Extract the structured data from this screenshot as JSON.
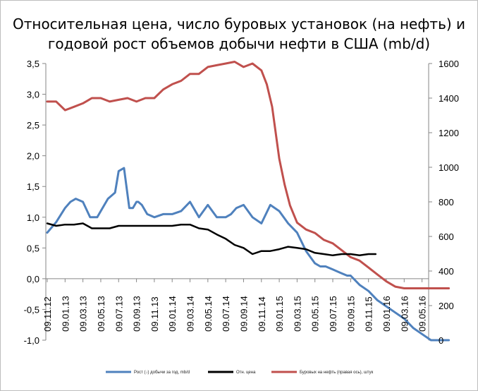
{
  "chart_data": {
    "type": "line",
    "title": [
      "Относительная цена, число буровых установок (на нефть) и",
      "годовой рост объемов добычи нефти в США (mb/d)"
    ],
    "y_left": {
      "ylim": [
        -1.0,
        3.5
      ],
      "ticks": [
        "-1,0",
        "-0,5",
        "0,0",
        "0,5",
        "1,0",
        "1,5",
        "2,0",
        "2,5",
        "3,0",
        "3,5"
      ]
    },
    "y_right": {
      "ylim": [
        0,
        1600
      ],
      "ticks": [
        "0",
        "200",
        "400",
        "600",
        "800",
        "1000",
        "1200",
        "1400",
        "1600"
      ]
    },
    "x_ticks": [
      "09.11.12",
      "09.01.13",
      "09.03.13",
      "09.05.13",
      "09.07.13",
      "09.09.13",
      "09.11.13",
      "09.01.14",
      "09.03.14",
      "09.05.14",
      "09.07.14",
      "09.09.14",
      "09.11.14",
      "09.01.15",
      "09.03.15",
      "09.05.15",
      "09.07.15",
      "09.09.15",
      "09.11.15",
      "09.01.16",
      "09.03.16",
      "09.05.16"
    ],
    "series": [
      {
        "name": "Рост (↓) добычи за год, mb/d",
        "axis": "left",
        "color": "#4f81bd",
        "x": [
          0,
          0.5,
          1,
          1.3,
          1.6,
          2,
          2.4,
          2.8,
          3,
          3.4,
          3.8,
          4,
          4.3,
          4.6,
          4.8,
          5,
          5.1,
          5.3,
          5.6,
          6,
          6.5,
          7,
          7.5,
          8,
          8.5,
          9,
          9.5,
          10,
          10.3,
          10.6,
          11,
          11.5,
          12,
          12.5,
          13,
          13.5,
          14,
          14.5,
          15,
          15.3,
          15.6,
          16,
          16.4,
          16.8,
          17,
          17.5,
          18,
          18.5,
          19,
          19.5,
          20,
          20.5,
          21,
          21.5,
          22,
          22.5
        ],
        "values": [
          0.75,
          0.92,
          1.15,
          1.25,
          1.3,
          1.25,
          1.0,
          1.0,
          1.1,
          1.3,
          1.4,
          1.75,
          1.8,
          1.15,
          1.15,
          1.25,
          1.25,
          1.2,
          1.05,
          1.0,
          1.05,
          1.05,
          1.1,
          1.25,
          1.0,
          1.2,
          1.0,
          1.0,
          1.05,
          1.15,
          1.2,
          1.0,
          0.9,
          1.2,
          1.1,
          0.9,
          0.75,
          0.45,
          0.25,
          0.2,
          0.2,
          0.15,
          0.1,
          0.05,
          0.05,
          -0.1,
          -0.2,
          -0.35,
          -0.45,
          -0.55,
          -0.65,
          -0.8,
          -0.9,
          -1.0,
          -1.0,
          -1.0
        ]
      },
      {
        "name": "Отн. цена",
        "axis": "left",
        "color": "#000000",
        "x": [
          0,
          0.5,
          1,
          1.5,
          2,
          2.5,
          3,
          3.5,
          4,
          4.5,
          5,
          5.5,
          6,
          6.5,
          7,
          7.5,
          8,
          8.5,
          9,
          9.5,
          10,
          10.5,
          11,
          11.5,
          12,
          12.5,
          13,
          13.5,
          14,
          14.5,
          15,
          15.5,
          16,
          16.5,
          17,
          17.5,
          18,
          18.4
        ],
        "values": [
          0.9,
          0.86,
          0.88,
          0.88,
          0.9,
          0.82,
          0.82,
          0.82,
          0.86,
          0.86,
          0.86,
          0.86,
          0.86,
          0.86,
          0.86,
          0.88,
          0.88,
          0.82,
          0.8,
          0.72,
          0.65,
          0.55,
          0.5,
          0.4,
          0.45,
          0.45,
          0.48,
          0.52,
          0.5,
          0.48,
          0.42,
          0.4,
          0.38,
          0.4,
          0.4,
          0.38,
          0.4,
          0.4
        ]
      },
      {
        "name": "Буровых на нефть (правая ось), штук",
        "axis": "right",
        "color": "#c0504d",
        "x": [
          0,
          0.5,
          1,
          1.5,
          2,
          2.5,
          3,
          3.5,
          4,
          4.5,
          5,
          5.5,
          6,
          6.5,
          7,
          7.5,
          8,
          8.5,
          9,
          9.5,
          10,
          10.5,
          11,
          11.5,
          12,
          12.3,
          12.6,
          13,
          13.3,
          13.6,
          14,
          14.5,
          15,
          15.5,
          16,
          16.5,
          17,
          17.5,
          18,
          18.5,
          19,
          19.5,
          20,
          20.5,
          21,
          21.5,
          22,
          22.5
        ],
        "values": [
          1380,
          1380,
          1330,
          1350,
          1370,
          1400,
          1400,
          1380,
          1390,
          1400,
          1380,
          1400,
          1400,
          1450,
          1480,
          1500,
          1540,
          1540,
          1580,
          1590,
          1600,
          1610,
          1580,
          1600,
          1560,
          1480,
          1350,
          1050,
          900,
          780,
          680,
          640,
          620,
          580,
          560,
          520,
          480,
          460,
          420,
          380,
          340,
          310,
          300,
          300,
          300,
          300,
          300,
          300
        ]
      }
    ],
    "legend": [
      "Рост (↓) добычи за год, mb/d",
      "Отн. цена",
      "Буровых на нефть (правая ось), штук"
    ],
    "legend_position": "bottom",
    "grid": false
  }
}
